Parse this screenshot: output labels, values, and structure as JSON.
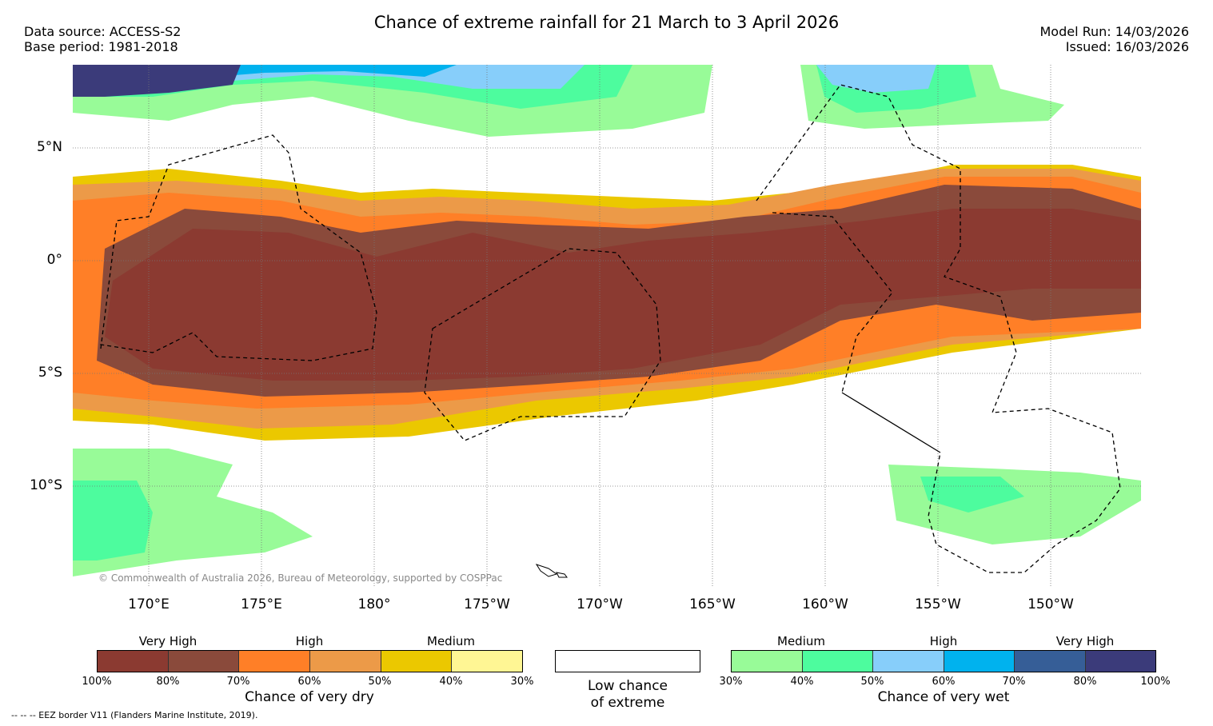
{
  "header": {
    "title": "Chance of extreme rainfall for 21 March to 3 April 2026",
    "data_source": "Data source: ACCESS-S2",
    "base_period": "Base period: 1981-2018",
    "model_run": "Model Run: 14/03/2026",
    "issued": "Issued: 16/03/2026"
  },
  "axes": {
    "lat": [
      "5°N",
      "0°",
      "5°S",
      "10°S"
    ],
    "lon": [
      "170°E",
      "175°E",
      "180°",
      "175°W",
      "170°W",
      "165°W",
      "160°W",
      "155°W",
      "150°W"
    ]
  },
  "map": {
    "copyright": "© Commonwealth of Australia 2026, Bureau of Meteorology, supported by COSPPac",
    "colors": {
      "dry_100": "#8b3a31",
      "dry_80": "#8a4a3b",
      "dry_70": "#ff7f27",
      "dry_60": "#ec9a48",
      "dry_50": "#ebc800",
      "dry_40": "#fff694",
      "wet_30": "#98fb98",
      "wet_40": "#4dfc9e",
      "wet_50": "#87cefa",
      "wet_60": "#00b2ee",
      "wet_70": "#365e97",
      "wet_80": "#3b3b7a"
    }
  },
  "legend": {
    "dry": {
      "bands": [
        "Very High",
        "High",
        "Medium"
      ],
      "ticks": [
        "100%",
        "80%",
        "70%",
        "60%",
        "50%",
        "40%",
        "30%"
      ],
      "caption": "Chance of very dry",
      "colors": [
        "#8b3a31",
        "#8a4a3b",
        "#ff7f27",
        "#ec9a48",
        "#ebc800",
        "#fff694"
      ]
    },
    "low": {
      "line1": "Low chance",
      "line2": "of extreme"
    },
    "wet": {
      "bands": [
        "Medium",
        "High",
        "Very High"
      ],
      "ticks": [
        "30%",
        "40%",
        "50%",
        "60%",
        "70%",
        "80%",
        "100%"
      ],
      "caption": "Chance of very wet",
      "colors": [
        "#98fb98",
        "#4dfc9e",
        "#87cefa",
        "#00b2ee",
        "#365e97",
        "#3b3b7a"
      ]
    }
  },
  "footer": {
    "eez": "--  --  -- EEZ border V11 (Flanders Marine Institute, 2019)."
  }
}
